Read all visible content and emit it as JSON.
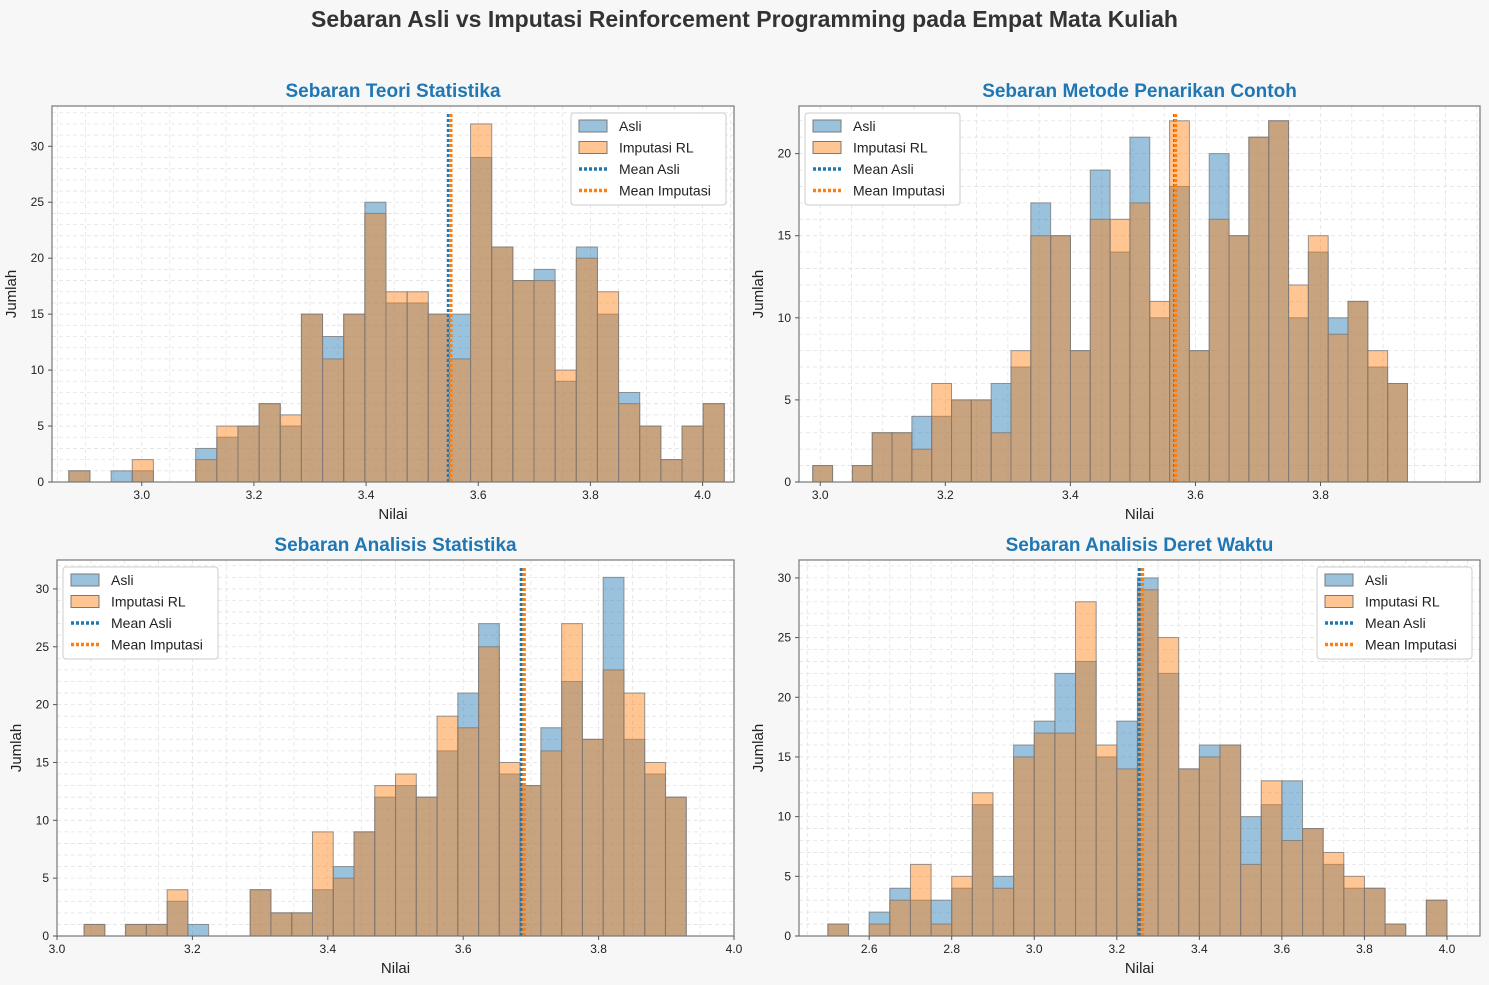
{
  "figure": {
    "title": "Sebaran Asli vs Imputasi Reinforcement Programming pada Empat Mata Kuliah"
  },
  "colors": {
    "asli": "#1f77b4",
    "imputasi": "#ff7f0e",
    "title": "#1f77b4",
    "background": "#f7f7f7"
  },
  "legend_labels": [
    "Asli",
    "Imputasi RL",
    "Mean Asli",
    "Mean Imputasi"
  ],
  "chart_data": [
    {
      "type": "histogram",
      "title": "Sebaran Teori Statistika",
      "xlabel": "Nilai",
      "ylabel": "Jumlah",
      "xlim": [
        2.84,
        4.056
      ],
      "ylim": [
        0,
        33.6
      ],
      "xticks": [
        3.0,
        3.2,
        3.4,
        3.6,
        3.8,
        4.0
      ],
      "yticks": [
        0,
        5,
        10,
        15,
        20,
        25,
        30
      ],
      "tick_decimals": 1,
      "legend": "top-right",
      "bin_start": 2.87,
      "bin_width": 0.0377,
      "asli": [
        1,
        0,
        1,
        1,
        0,
        0,
        3,
        4,
        5,
        7,
        5,
        15,
        13,
        15,
        25,
        16,
        16,
        15,
        15,
        29,
        21,
        18,
        19,
        9,
        21,
        15,
        8,
        5,
        2,
        5,
        7
      ],
      "imputasi": [
        1,
        0,
        0,
        2,
        0,
        0,
        2,
        5,
        5,
        7,
        6,
        15,
        11,
        15,
        24,
        17,
        17,
        15,
        11,
        32,
        21,
        18,
        18,
        10,
        20,
        17,
        7,
        5,
        2,
        5,
        7
      ],
      "mean_asli": 3.547,
      "mean_imputasi": 3.551
    },
    {
      "type": "histogram",
      "title": "Sebaran Metode Penarikan Contoh",
      "xlabel": "Nilai",
      "ylabel": "Jumlah",
      "xlim": [
        2.966,
        4.055
      ],
      "ylim": [
        0,
        22.9
      ],
      "xticks": [
        3.0,
        3.2,
        3.4,
        3.6,
        3.8
      ],
      "yticks": [
        0,
        5,
        10,
        15,
        20
      ],
      "tick_decimals": 1,
      "legend": "top-left",
      "bin_start": 2.988,
      "bin_width": 0.0317,
      "asli": [
        1,
        0,
        1,
        3,
        3,
        4,
        4,
        5,
        5,
        6,
        7,
        17,
        15,
        8,
        19,
        14,
        21,
        10,
        18,
        8,
        20,
        15,
        21,
        22,
        10,
        14,
        10,
        11,
        7,
        6
      ],
      "imputasi": [
        1,
        0,
        1,
        3,
        3,
        2,
        6,
        5,
        5,
        3,
        8,
        15,
        15,
        8,
        16,
        16,
        17,
        11,
        22,
        8,
        16,
        15,
        21,
        22,
        12,
        15,
        9,
        11,
        8,
        6
      ],
      "mean_asli": 3.567,
      "mean_imputasi": 3.568
    },
    {
      "type": "histogram",
      "title": "Sebaran Analisis Statistika",
      "xlabel": "Nilai",
      "ylabel": "Jumlah",
      "xlim": [
        3.0,
        4.0
      ],
      "ylim": [
        0,
        32.5
      ],
      "xticks": [
        3.0,
        3.2,
        3.4,
        3.6,
        3.8,
        4.0
      ],
      "yticks": [
        0,
        5,
        10,
        15,
        20,
        25,
        30
      ],
      "tick_decimals": 1,
      "legend": "top-left",
      "bin_start": 3.04,
      "bin_width": 0.03067,
      "asli": [
        1,
        0,
        1,
        1,
        3,
        1,
        0,
        0,
        4,
        2,
        2,
        4,
        6,
        9,
        12,
        13,
        12,
        16,
        21,
        27,
        14,
        13,
        18,
        22,
        17,
        31,
        17,
        14,
        12
      ],
      "imputasi": [
        1,
        0,
        1,
        1,
        4,
        0,
        0,
        0,
        4,
        2,
        2,
        9,
        5,
        9,
        13,
        14,
        12,
        19,
        18,
        25,
        15,
        13,
        16,
        27,
        17,
        23,
        21,
        15,
        12
      ],
      "mean_asli": 3.686,
      "mean_imputasi": 3.69
    },
    {
      "type": "histogram",
      "title": "Sebaran Analisis Deret Waktu",
      "xlabel": "Nilai",
      "ylabel": "Jumlah",
      "xlim": [
        2.43,
        4.08
      ],
      "ylim": [
        0,
        31.5
      ],
      "xticks": [
        2.6,
        2.8,
        3.0,
        3.2,
        3.4,
        3.6,
        3.8,
        4.0
      ],
      "yticks": [
        0,
        5,
        10,
        15,
        20,
        25,
        30
      ],
      "tick_decimals": 1,
      "legend": "top-right",
      "bin_start": 2.5,
      "bin_width": 0.05,
      "asli": [
        1,
        0,
        2,
        4,
        3,
        3,
        4,
        11,
        5,
        16,
        18,
        22,
        23,
        15,
        18,
        30,
        22,
        14,
        16,
        16,
        10,
        11,
        13,
        9,
        6,
        4,
        4,
        1,
        0,
        3
      ],
      "imputasi": [
        1,
        0,
        1,
        3,
        6,
        1,
        5,
        12,
        4,
        15,
        17,
        17,
        28,
        16,
        14,
        29,
        25,
        14,
        15,
        16,
        6,
        13,
        8,
        9,
        7,
        5,
        4,
        1,
        0,
        3
      ],
      "mean_asli": 3.255,
      "mean_imputasi": 3.262
    }
  ]
}
